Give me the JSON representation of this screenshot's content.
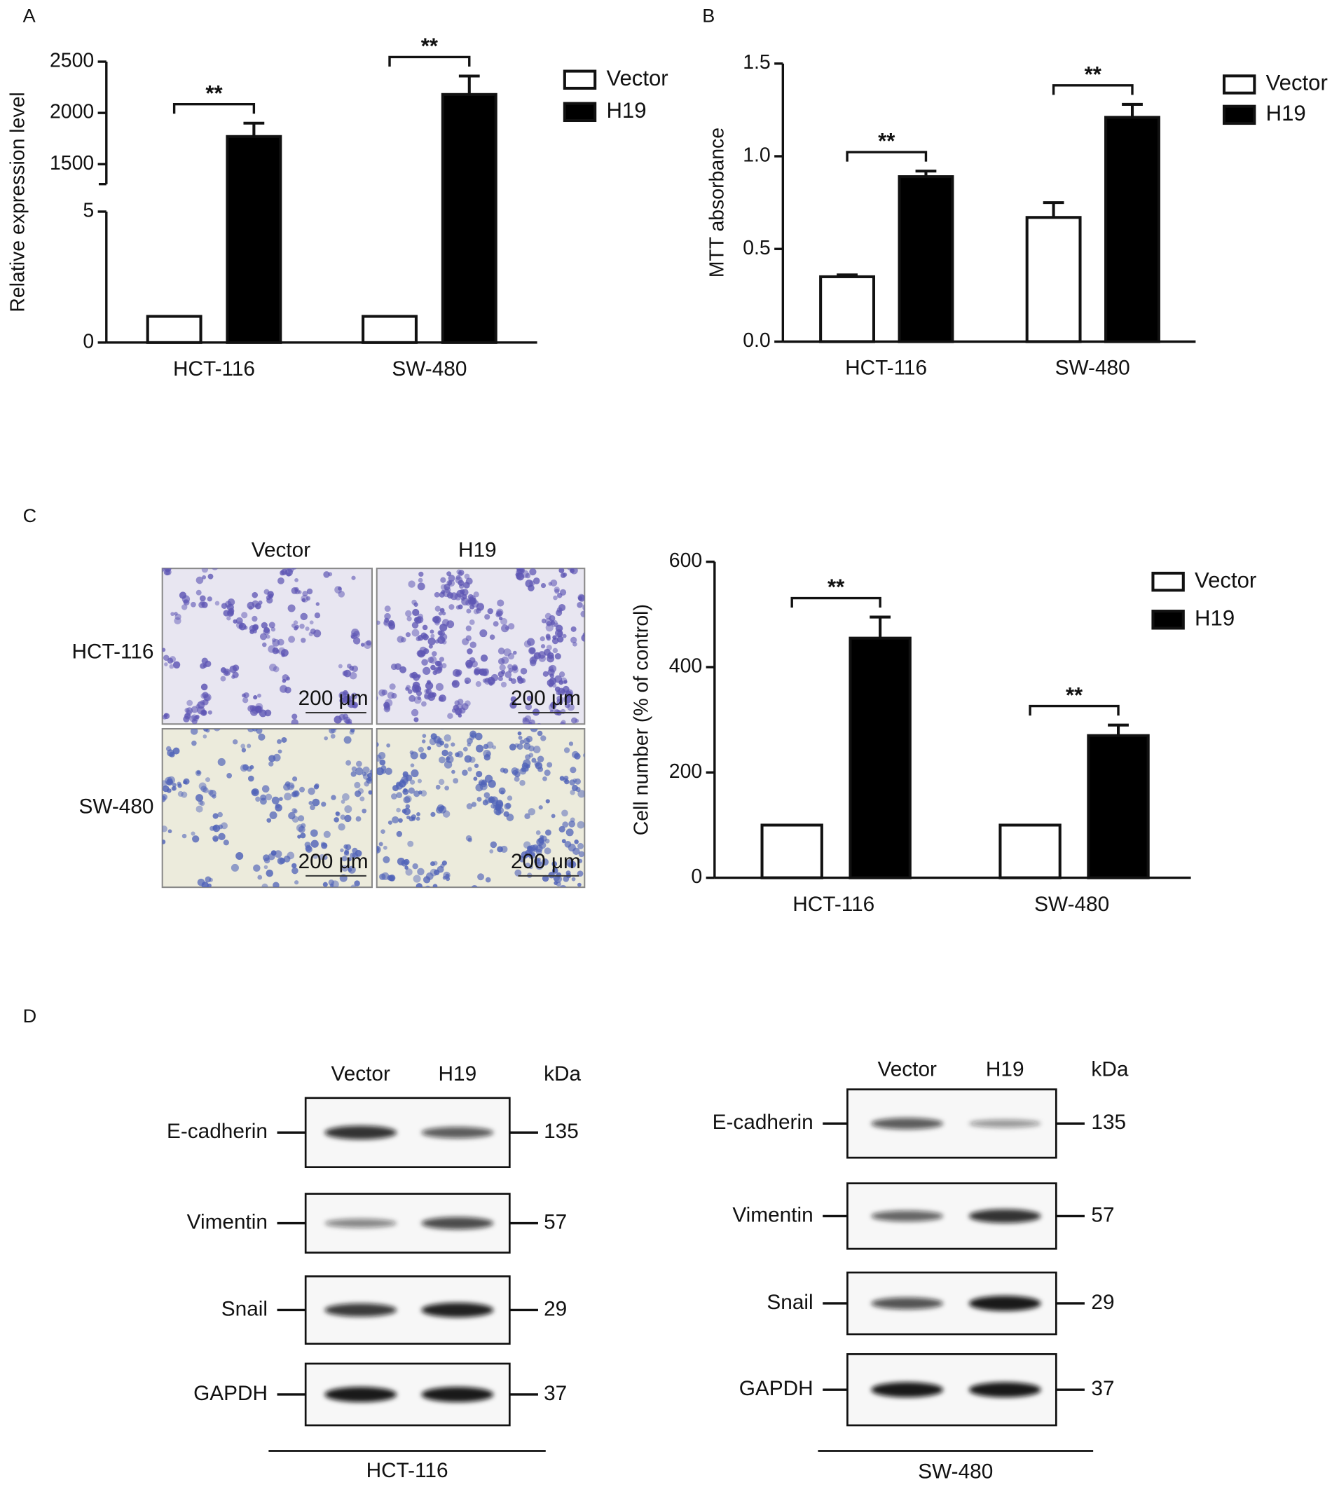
{
  "panel_labels": [
    "A",
    "B",
    "C",
    "D"
  ],
  "chart_data": [
    {
      "type": "bar",
      "y_label": "Relative expression level",
      "categories": [
        "HCT-116",
        "SW-480"
      ],
      "series": [
        {
          "name": "Vector",
          "color": "#ffffff",
          "values": [
            1,
            1
          ]
        },
        {
          "name": "H19",
          "color": "#000000",
          "values": [
            1770,
            2180
          ],
          "errors": [
            130,
            180
          ]
        }
      ],
      "ylim": [
        0,
        2500
      ],
      "y_break": [
        5,
        1500
      ],
      "yticks": [
        0,
        5,
        1500,
        2000,
        2500
      ],
      "annotations": [
        "**",
        "**"
      ],
      "legend": "right"
    },
    {
      "type": "bar",
      "y_label": "MTT absorbance",
      "categories": [
        "HCT-116",
        "SW-480"
      ],
      "series": [
        {
          "name": "Vector",
          "color": "#ffffff",
          "values": [
            0.35,
            0.67
          ],
          "errors": [
            0.01,
            0.08
          ]
        },
        {
          "name": "H19",
          "color": "#000000",
          "values": [
            0.89,
            1.21
          ],
          "errors": [
            0.03,
            0.07
          ]
        }
      ],
      "ylim": [
        0,
        1.5
      ],
      "yticks": [
        {
          "value": 0,
          "label": "0.0"
        },
        0.5,
        {
          "value": 1,
          "label": "1.0"
        },
        1.5
      ],
      "annotations": [
        "**",
        "**"
      ],
      "legend": "right"
    },
    {
      "type": "bar",
      "y_label": "Cell number (% of control)",
      "categories": [
        "HCT-116",
        "SW-480"
      ],
      "series": [
        {
          "name": "Vector",
          "color": "#ffffff",
          "values": [
            100,
            100
          ]
        },
        {
          "name": "H19",
          "color": "#000000",
          "values": [
            455,
            270
          ],
          "errors": [
            40,
            20
          ]
        }
      ],
      "ylim": [
        0,
        600
      ],
      "yticks": [
        0,
        200,
        400,
        600
      ],
      "annotations": [
        "**",
        "**"
      ],
      "legend": "right"
    }
  ],
  "micrograph": {
    "columns": [
      "Vector",
      "H19"
    ],
    "rows": [
      "HCT-116",
      "SW-480"
    ],
    "scale_bars": [
      [
        "200 μm",
        "200 μm"
      ],
      [
        "200 μm",
        "200 μm"
      ]
    ]
  },
  "western_blots": [
    {
      "lanes": [
        "Vector",
        "H19"
      ],
      "unit": "kDa",
      "proteins": [
        {
          "name": "E-cadherin",
          "kda": 135
        },
        {
          "name": "Vimentin",
          "kda": 57
        },
        {
          "name": "Snail",
          "kda": 29
        },
        {
          "name": "GAPDH",
          "kda": 37
        }
      ],
      "cell_line": "HCT-116"
    },
    {
      "lanes": [
        "Vector",
        "H19"
      ],
      "unit": "kDa",
      "proteins": [
        {
          "name": "E-cadherin",
          "kda": 135
        },
        {
          "name": "Vimentin",
          "kda": 57
        },
        {
          "name": "Snail",
          "kda": 29
        },
        {
          "name": "GAPDH",
          "kda": 37
        }
      ],
      "cell_line": "SW-480"
    }
  ]
}
